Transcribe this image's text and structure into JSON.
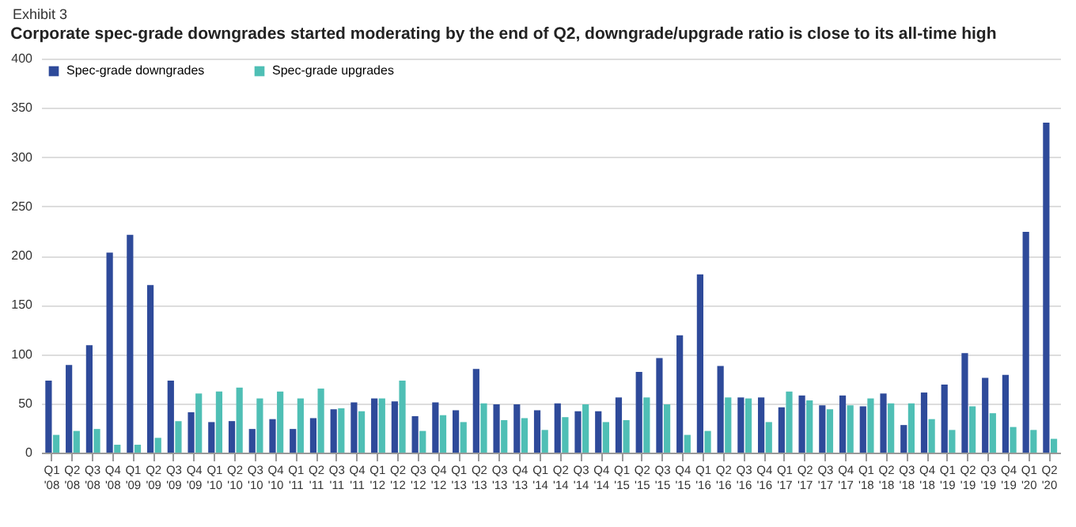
{
  "chart_data": {
    "type": "bar",
    "title": "Corporate spec-grade downgrades started moderating by the end of Q2, downgrade/upgrade ratio is close to its all-time high",
    "annotations": [
      "Exhibit 3"
    ],
    "categories": [
      "Q1 '08",
      "Q2 '08",
      "Q3 '08",
      "Q4 '08",
      "Q1 '09",
      "Q2 '09",
      "Q3 '09",
      "Q4 '09",
      "Q1 '10",
      "Q2 '10",
      "Q3 '10",
      "Q4 '10",
      "Q1 '11",
      "Q2 '11",
      "Q3 '11",
      "Q4 '11",
      "Q1 '12",
      "Q2 '12",
      "Q3 '12",
      "Q4 '12",
      "Q1 '13",
      "Q2 '13",
      "Q3 '13",
      "Q4 '13",
      "Q1 '14",
      "Q2 '14",
      "Q3 '14",
      "Q4 '14",
      "Q1 '15",
      "Q2 '15",
      "Q3 '15",
      "Q4 '15",
      "Q1 '16",
      "Q2 '16",
      "Q3 '16",
      "Q4 '16",
      "Q1 '17",
      "Q2 '17",
      "Q3 '17",
      "Q4 '17",
      "Q1 '18",
      "Q2 '18",
      "Q3 '18",
      "Q4 '18",
      "Q1 '19",
      "Q2 '19",
      "Q3 '19",
      "Q4 '19",
      "Q1 '20",
      "Q2 '20"
    ],
    "series": [
      {
        "name": "Spec-grade downgrades",
        "color": "#2e4a9a",
        "values": [
          73,
          89,
          109,
          203,
          221,
          170,
          73,
          41,
          31,
          32,
          24,
          34,
          24,
          35,
          44,
          51,
          55,
          52,
          37,
          51,
          43,
          85,
          49,
          49,
          43,
          50,
          42,
          42,
          56,
          82,
          96,
          119,
          181,
          88,
          56,
          56,
          46,
          58,
          48,
          58,
          47,
          60,
          28,
          61,
          69,
          101,
          76,
          79,
          224,
          335
        ]
      },
      {
        "name": "Spec-grade upgrades",
        "color": "#4fbfb5",
        "values": [
          18,
          22,
          24,
          8,
          8,
          15,
          32,
          60,
          62,
          66,
          55,
          62,
          55,
          65,
          45,
          42,
          55,
          73,
          22,
          38,
          31,
          50,
          33,
          35,
          23,
          36,
          49,
          31,
          33,
          56,
          49,
          18,
          22,
          56,
          55,
          31,
          62,
          53,
          44,
          48,
          55,
          50,
          50,
          34,
          23,
          47,
          40,
          26,
          23,
          14
        ]
      }
    ],
    "ylim": [
      0,
      400
    ],
    "yticks": [
      0,
      50,
      100,
      150,
      200,
      250,
      300,
      350,
      400
    ],
    "grid": "y",
    "legend": "top left"
  }
}
